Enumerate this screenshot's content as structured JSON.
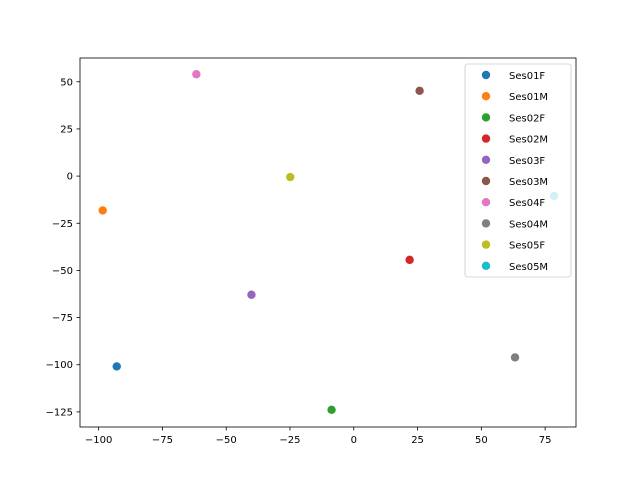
{
  "chart_data": {
    "type": "scatter",
    "title": "",
    "xlabel": "",
    "ylabel": "",
    "xlim": [
      -107.3,
      87.1
    ],
    "ylim": [
      -133.0,
      62.6
    ],
    "xticks": [
      -100,
      -75,
      -50,
      -25,
      0,
      25,
      50,
      75
    ],
    "yticks": [
      -125,
      -100,
      -75,
      -50,
      -25,
      0,
      25,
      50
    ],
    "xtick_labels": [
      "−100",
      "−75",
      "−50",
      "−25",
      "0",
      "25",
      "50",
      "75"
    ],
    "ytick_labels": [
      "−125",
      "−100",
      "−75",
      "−50",
      "−25",
      "0",
      "25",
      "50"
    ],
    "grid": false,
    "legend_position": "top-right",
    "series": [
      {
        "name": "Ses01F",
        "color": "#1f77b4",
        "x": -92.9,
        "y": -100.9
      },
      {
        "name": "Ses01M",
        "color": "#ff7f0e",
        "x": -98.4,
        "y": -18.2
      },
      {
        "name": "Ses02F",
        "color": "#2ca02c",
        "x": -8.7,
        "y": -123.9
      },
      {
        "name": "Ses02M",
        "color": "#d62728",
        "x": 21.9,
        "y": -44.4
      },
      {
        "name": "Ses03F",
        "color": "#9467bd",
        "x": -40.1,
        "y": -62.9
      },
      {
        "name": "Ses03M",
        "color": "#8c564b",
        "x": 25.8,
        "y": 45.2
      },
      {
        "name": "Ses04F",
        "color": "#e377c2",
        "x": -61.7,
        "y": 54.0
      },
      {
        "name": "Ses04M",
        "color": "#7f7f7f",
        "x": 63.2,
        "y": -96.1
      },
      {
        "name": "Ses05F",
        "color": "#bcbd22",
        "x": -24.9,
        "y": -0.5
      },
      {
        "name": "Ses05M",
        "color": "#17becf",
        "x": 78.5,
        "y": -10.5
      }
    ]
  }
}
